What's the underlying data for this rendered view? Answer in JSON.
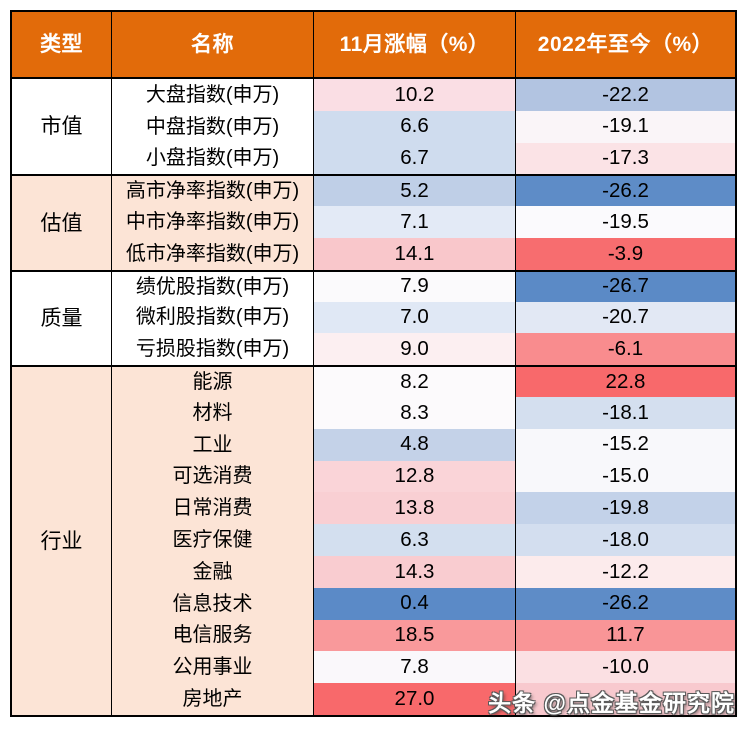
{
  "header": {
    "col_type": "类型",
    "col_name": "名称",
    "col_nov": "11月涨幅（%）",
    "col_ytd": "2022年至今（%）"
  },
  "colors": {
    "header_bg": "#E26B0A",
    "header_text": "#FFFFFF",
    "group_peach": "#FCE4D6",
    "group_white": "#FFFFFF",
    "border": "#000000",
    "scale_low_blue": "#5A8AC6",
    "scale_mid_white": "#FCFCFF",
    "scale_high_red": "#F8696B"
  },
  "groups": [
    {
      "type": "市值",
      "bg": "#FFFFFF",
      "rows": [
        {
          "name": "大盘指数(申万)",
          "nov": "10.2",
          "nov_bg": "#FADEE4",
          "ytd": "-22.2",
          "ytd_bg": "#B2C4E1"
        },
        {
          "name": "中盘指数(申万)",
          "nov": "6.6",
          "nov_bg": "#CFDCEE",
          "ytd": "-19.1",
          "ytd_bg": "#FAF5F8"
        },
        {
          "name": "小盘指数(申万)",
          "nov": "6.7",
          "nov_bg": "#CFDCEE",
          "ytd": "-17.3",
          "ytd_bg": "#FBE3E6"
        }
      ]
    },
    {
      "type": "估值",
      "bg": "#FCE4D6",
      "rows": [
        {
          "name": "高市净率指数(申万)",
          "nov": "5.2",
          "nov_bg": "#BFCFE7",
          "ytd": "-26.2",
          "ytd_bg": "#5E8CC7"
        },
        {
          "name": "中市净率指数(申万)",
          "nov": "7.1",
          "nov_bg": "#E3EAF6",
          "ytd": "-19.5",
          "ytd_bg": "#FBFAFD"
        },
        {
          "name": "低市净率指数(申万)",
          "nov": "14.1",
          "nov_bg": "#F9C7CB",
          "ytd": "-3.9",
          "ytd_bg": "#F76D6F"
        }
      ]
    },
    {
      "type": "质量",
      "bg": "#FFFFFF",
      "rows": [
        {
          "name": "绩优股指数(申万)",
          "nov": "7.9",
          "nov_bg": "#FBFAFC",
          "ytd": "-26.7",
          "ytd_bg": "#5B8AC6"
        },
        {
          "name": "微利股指数(申万)",
          "nov": "7.0",
          "nov_bg": "#E0E8F5",
          "ytd": "-20.7",
          "ytd_bg": "#E2E8F4"
        },
        {
          "name": "亏损股指数(申万)",
          "nov": "9.0",
          "nov_bg": "#FCEFF1",
          "ytd": "-6.1",
          "ytd_bg": "#F98C8E"
        }
      ]
    },
    {
      "type": "行业",
      "bg": "#FCE4D6",
      "rows": [
        {
          "name": "能源",
          "nov": "8.2",
          "nov_bg": "#FCFAFC",
          "ytd": "22.8",
          "ytd_bg": "#F8696B"
        },
        {
          "name": "材料",
          "nov": "8.3",
          "nov_bg": "#FCFAFC",
          "ytd": "-18.1",
          "ytd_bg": "#D4DFEF"
        },
        {
          "name": "工业",
          "nov": "4.8",
          "nov_bg": "#C4D2E8",
          "ytd": "-15.2",
          "ytd_bg": "#F8F8FB"
        },
        {
          "name": "可选消费",
          "nov": "12.8",
          "nov_bg": "#FAD4D8",
          "ytd": "-15.0",
          "ytd_bg": "#F8F8FB"
        },
        {
          "name": "日常消费",
          "nov": "13.8",
          "nov_bg": "#F9CFD3",
          "ytd": "-19.8",
          "ytd_bg": "#C3D2E9"
        },
        {
          "name": "医疗保健",
          "nov": "6.3",
          "nov_bg": "#D3DFEF",
          "ytd": "-18.0",
          "ytd_bg": "#D3DEEF"
        },
        {
          "name": "金融",
          "nov": "14.3",
          "nov_bg": "#F9CCD0",
          "ytd": "-12.2",
          "ytd_bg": "#FCEBEC"
        },
        {
          "name": "信息技术",
          "nov": "0.4",
          "nov_bg": "#5B8AC7",
          "ytd": "-26.2",
          "ytd_bg": "#5E8CC7"
        },
        {
          "name": "电信服务",
          "nov": "18.5",
          "nov_bg": "#F9999B",
          "ytd": "11.7",
          "ytd_bg": "#F99597"
        },
        {
          "name": "公用事业",
          "nov": "7.8",
          "nov_bg": "#FAF8FB",
          "ytd": "-10.0",
          "ytd_bg": "#FBE0E3"
        },
        {
          "name": "房地产",
          "nov": "27.0",
          "nov_bg": "#F8696B",
          "ytd": "",
          "ytd_bg": "#F8C9CE"
        }
      ]
    }
  ],
  "watermark": {
    "text": "头条 @点金基金研究院"
  },
  "chart_data": {
    "type": "table",
    "columns": [
      "类型",
      "名称",
      "11月涨幅（%）",
      "2022年至今（%）"
    ],
    "rows": [
      [
        "市值",
        "大盘指数(申万)",
        10.2,
        -22.2
      ],
      [
        "市值",
        "中盘指数(申万)",
        6.6,
        -19.1
      ],
      [
        "市值",
        "小盘指数(申万)",
        6.7,
        -17.3
      ],
      [
        "估值",
        "高市净率指数(申万)",
        5.2,
        -26.2
      ],
      [
        "估值",
        "中市净率指数(申万)",
        7.1,
        -19.5
      ],
      [
        "估值",
        "低市净率指数(申万)",
        14.1,
        -3.9
      ],
      [
        "质量",
        "绩优股指数(申万)",
        7.9,
        -26.7
      ],
      [
        "质量",
        "微利股指数(申万)",
        7.0,
        -20.7
      ],
      [
        "质量",
        "亏损股指数(申万)",
        9.0,
        -6.1
      ],
      [
        "行业",
        "能源",
        8.2,
        22.8
      ],
      [
        "行业",
        "材料",
        8.3,
        -18.1
      ],
      [
        "行业",
        "工业",
        4.8,
        -15.2
      ],
      [
        "行业",
        "可选消费",
        12.8,
        -15.0
      ],
      [
        "行业",
        "日常消费",
        13.8,
        -19.8
      ],
      [
        "行业",
        "医疗保健",
        6.3,
        -18.0
      ],
      [
        "行业",
        "金融",
        14.3,
        -12.2
      ],
      [
        "行业",
        "信息技术",
        0.4,
        -26.2
      ],
      [
        "行业",
        "电信服务",
        18.5,
        11.7
      ],
      [
        "行业",
        "公用事业",
        7.8,
        -10.0
      ],
      [
        "行业",
        "房地产",
        27.0,
        null
      ]
    ],
    "notes": "cell backgrounds follow a blue-white-red conditional color scale; last YTD value hidden by watermark"
  }
}
